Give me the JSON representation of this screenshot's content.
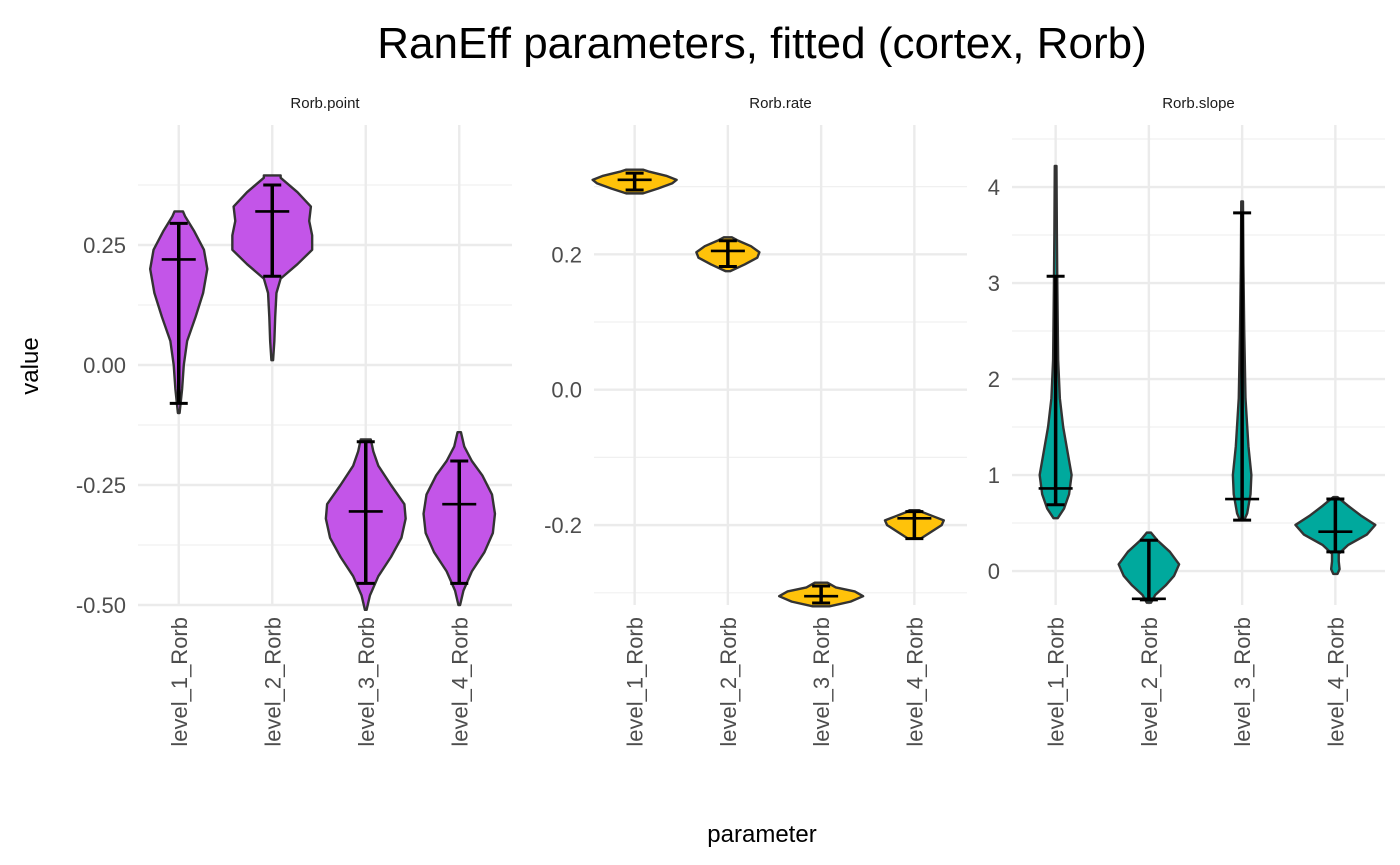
{
  "chart_data": {
    "type": "violin",
    "title": "RanEff parameters, fitted (cortex, Rorb)",
    "xlabel": "parameter",
    "ylabel": "value",
    "categories": [
      "level_1_Rorb",
      "level_2_Rorb",
      "level_3_Rorb",
      "level_4_Rorb"
    ],
    "panels": [
      {
        "name": "Rorb.point",
        "fill": "#C355E8",
        "ylim": [
          -0.5,
          0.5
        ],
        "major_breaks": [
          -0.5,
          -0.25,
          0,
          0.25
        ],
        "tick_labels": [
          "-0.50",
          "-0.25",
          "0.00",
          "0.25"
        ],
        "minor_breaks": [
          -0.375,
          -0.125,
          0.125,
          0.375
        ],
        "violins": [
          {
            "min": -0.1,
            "max": 0.32,
            "lower": -0.08,
            "median": 0.22,
            "upper": 0.295,
            "density": [
              [
                -0.1,
                0.02
              ],
              [
                -0.05,
                0.08
              ],
              [
                0.0,
                0.12
              ],
              [
                0.05,
                0.2
              ],
              [
                0.1,
                0.4
              ],
              [
                0.15,
                0.58
              ],
              [
                0.2,
                0.68
              ],
              [
                0.24,
                0.6
              ],
              [
                0.28,
                0.36
              ],
              [
                0.31,
                0.15
              ],
              [
                0.32,
                0.1
              ]
            ]
          },
          {
            "min": 0.01,
            "max": 0.395,
            "lower": 0.185,
            "median": 0.32,
            "upper": 0.375,
            "density": [
              [
                0.01,
                0.02
              ],
              [
                0.05,
                0.05
              ],
              [
                0.1,
                0.07
              ],
              [
                0.15,
                0.1
              ],
              [
                0.18,
                0.2
              ],
              [
                0.21,
                0.6
              ],
              [
                0.24,
                0.95
              ],
              [
                0.27,
                0.95
              ],
              [
                0.3,
                0.88
              ],
              [
                0.33,
                0.92
              ],
              [
                0.36,
                0.6
              ],
              [
                0.39,
                0.2
              ],
              [
                0.395,
                0.2
              ]
            ]
          },
          {
            "min": -0.51,
            "max": -0.155,
            "lower": -0.455,
            "median": -0.305,
            "upper": -0.16,
            "density": [
              [
                -0.51,
                0.02
              ],
              [
                -0.48,
                0.1
              ],
              [
                -0.44,
                0.3
              ],
              [
                -0.4,
                0.6
              ],
              [
                -0.36,
                0.85
              ],
              [
                -0.32,
                0.95
              ],
              [
                -0.29,
                0.92
              ],
              [
                -0.25,
                0.6
              ],
              [
                -0.21,
                0.3
              ],
              [
                -0.18,
                0.18
              ],
              [
                -0.155,
                0.12
              ]
            ]
          },
          {
            "min": -0.5,
            "max": -0.14,
            "lower": -0.455,
            "median": -0.29,
            "upper": -0.2,
            "density": [
              [
                -0.5,
                0.02
              ],
              [
                -0.47,
                0.1
              ],
              [
                -0.43,
                0.3
              ],
              [
                -0.39,
                0.6
              ],
              [
                -0.35,
                0.8
              ],
              [
                -0.31,
                0.85
              ],
              [
                -0.27,
                0.78
              ],
              [
                -0.23,
                0.55
              ],
              [
                -0.2,
                0.3
              ],
              [
                -0.17,
                0.12
              ],
              [
                -0.14,
                0.04
              ]
            ]
          }
        ]
      },
      {
        "name": "Rorb.rate",
        "fill": "#FFC20A",
        "ylim": [
          -0.318,
          0.391
        ],
        "major_breaks": [
          -0.2,
          0,
          0.2
        ],
        "tick_labels": [
          "-0.2",
          "0.0",
          "0.2"
        ],
        "minor_breaks": [
          -0.3,
          -0.1,
          0.1,
          0.3
        ],
        "violins": [
          {
            "min": 0.29,
            "max": 0.325,
            "lower": 0.295,
            "median": 0.31,
            "upper": 0.32,
            "density": [
              [
                0.29,
                0.2
              ],
              [
                0.297,
                0.55
              ],
              [
                0.305,
                0.9
              ],
              [
                0.31,
                1.0
              ],
              [
                0.316,
                0.75
              ],
              [
                0.322,
                0.35
              ],
              [
                0.325,
                0.2
              ]
            ]
          },
          {
            "min": 0.175,
            "max": 0.225,
            "lower": 0.182,
            "median": 0.205,
            "upper": 0.22,
            "density": [
              [
                0.175,
                0.05
              ],
              [
                0.185,
                0.4
              ],
              [
                0.195,
                0.7
              ],
              [
                0.203,
                0.75
              ],
              [
                0.212,
                0.55
              ],
              [
                0.22,
                0.25
              ],
              [
                0.225,
                0.1
              ]
            ]
          },
          {
            "min": -0.32,
            "max": -0.285,
            "lower": -0.315,
            "median": -0.305,
            "upper": -0.29,
            "density": [
              [
                -0.32,
                0.2
              ],
              [
                -0.313,
                0.7
              ],
              [
                -0.305,
                1.0
              ],
              [
                -0.298,
                0.8
              ],
              [
                -0.292,
                0.35
              ],
              [
                -0.285,
                0.15
              ]
            ]
          },
          {
            "min": -0.22,
            "max": -0.178,
            "lower": -0.22,
            "median": -0.19,
            "upper": -0.18,
            "density": [
              [
                -0.22,
                0.15
              ],
              [
                -0.21,
                0.4
              ],
              [
                -0.2,
                0.65
              ],
              [
                -0.193,
                0.7
              ],
              [
                -0.187,
                0.45
              ],
              [
                -0.181,
                0.2
              ],
              [
                -0.178,
                0.12
              ]
            ]
          }
        ]
      },
      {
        "name": "Rorb.slope",
        "fill": "#00A99D",
        "ylim": [
          -0.354,
          4.646
        ],
        "major_breaks": [
          0,
          1,
          2,
          3,
          4
        ],
        "tick_labels": [
          "0",
          "1",
          "2",
          "3",
          "4"
        ],
        "minor_breaks": [
          0.5,
          1.5,
          2.5,
          3.5,
          4.5
        ],
        "violins": [
          {
            "min": 0.55,
            "max": 4.22,
            "lower": 0.69,
            "median": 0.86,
            "upper": 3.07,
            "density": [
              [
                0.55,
                0.05
              ],
              [
                0.65,
                0.2
              ],
              [
                0.8,
                0.32
              ],
              [
                1.0,
                0.38
              ],
              [
                1.2,
                0.3
              ],
              [
                1.5,
                0.18
              ],
              [
                1.8,
                0.1
              ],
              [
                2.2,
                0.06
              ],
              [
                3.0,
                0.04
              ],
              [
                3.5,
                0.03
              ],
              [
                4.22,
                0.02
              ]
            ]
          },
          {
            "min": -0.33,
            "max": 0.4,
            "lower": -0.3,
            "median": -0.29,
            "upper": 0.32,
            "density": [
              [
                -0.33,
                0.05
              ],
              [
                -0.25,
                0.15
              ],
              [
                -0.15,
                0.4
              ],
              [
                -0.05,
                0.6
              ],
              [
                0.07,
                0.72
              ],
              [
                0.2,
                0.5
              ],
              [
                0.32,
                0.2
              ],
              [
                0.4,
                0.05
              ]
            ]
          },
          {
            "min": 0.53,
            "max": 3.85,
            "lower": 0.53,
            "median": 0.75,
            "upper": 3.73,
            "density": [
              [
                0.53,
                0.05
              ],
              [
                0.6,
                0.12
              ],
              [
                0.8,
                0.2
              ],
              [
                1.0,
                0.22
              ],
              [
                1.3,
                0.15
              ],
              [
                1.8,
                0.08
              ],
              [
                2.5,
                0.05
              ],
              [
                3.2,
                0.03
              ],
              [
                3.85,
                0.02
              ]
            ]
          },
          {
            "min": -0.03,
            "max": 0.77,
            "lower": 0.2,
            "median": 0.41,
            "upper": 0.75,
            "density": [
              [
                -0.03,
                0.05
              ],
              [
                0.02,
                0.1
              ],
              [
                0.1,
                0.08
              ],
              [
                0.18,
                0.08
              ],
              [
                0.27,
                0.3
              ],
              [
                0.38,
                0.75
              ],
              [
                0.48,
                0.95
              ],
              [
                0.58,
                0.6
              ],
              [
                0.68,
                0.3
              ],
              [
                0.77,
                0.05
              ]
            ]
          }
        ]
      }
    ]
  }
}
